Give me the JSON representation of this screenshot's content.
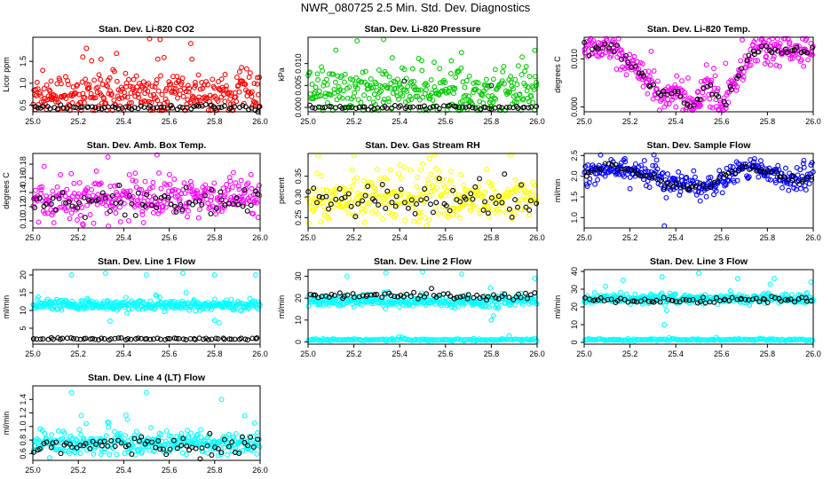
{
  "page": {
    "title": "NWR_080725  2.5 Min. Std. Dev. Diagnostics"
  },
  "chart_data": [
    {
      "type": "scatter",
      "title": "Stan. Dev. Li-820 CO2",
      "ylabel": "Licor ppm",
      "xlim": [
        25.0,
        26.0
      ],
      "xticks": [
        "25.0",
        "25.2",
        "25.4",
        "25.6",
        "25.8",
        "26.0"
      ],
      "ylim": [
        0.35,
        2.05
      ],
      "yticks": [
        "0.5",
        "1.0",
        "1.5"
      ],
      "series": [
        {
          "name": "color",
          "color": "#ff0000",
          "base": 0.75,
          "spread": 0.22,
          "outliers": [
            [
              25.22,
              1.6
            ],
            [
              25.56,
              2.0
            ],
            [
              25.55,
              1.55
            ],
            [
              25.3,
              1.55
            ],
            [
              25.7,
              1.55
            ],
            [
              25.08,
              1.05
            ]
          ]
        },
        {
          "name": "black",
          "color": "#000000",
          "base": 0.45,
          "spread": 0.03,
          "outliers": [
            [
              25.99,
              0.35
            ]
          ]
        }
      ]
    },
    {
      "type": "scatter",
      "title": "Stan. Dev. Li-820 Pressure",
      "ylabel": "kPa",
      "xlim": [
        25.0,
        26.0
      ],
      "xticks": [
        "25.0",
        "25.2",
        "25.4",
        "25.6",
        "25.8",
        "26.0"
      ],
      "ylim": [
        -0.001,
        0.016
      ],
      "yticks": [
        "0.000",
        "0.005",
        "0.010"
      ],
      "series": [
        {
          "name": "color",
          "color": "#00cc00",
          "base": 0.0035,
          "spread": 0.0028,
          "outliers": [
            [
              25.33,
              0.0155
            ],
            [
              25.67,
              0.0125
            ],
            [
              25.99,
              0.013
            ]
          ]
        },
        {
          "name": "black",
          "color": "#000000",
          "base": 0.0,
          "spread": 0.0002,
          "outliers": [
            [
              25.42,
              0.006
            ],
            [
              25.8,
              0.005
            ]
          ]
        }
      ]
    },
    {
      "type": "scatter",
      "title": "Stan. Dev. Li-820 Temp.",
      "ylabel": "degrees C",
      "xlim": [
        25.0,
        26.0
      ],
      "xticks": [
        "25.0",
        "25.2",
        "25.4",
        "25.6",
        "25.8",
        "26.0"
      ],
      "ylim": [
        -0.001,
        0.0145
      ],
      "yticks": [
        "0.000",
        "0.010"
      ],
      "series": [
        {
          "name": "color",
          "color": "#ff00ff",
          "base": "temp",
          "spread": 0.0015,
          "outliers": [
            [
              25.35,
              0.0
            ],
            [
              25.4,
              0.0
            ],
            [
              25.5,
              0.0
            ],
            [
              25.55,
              0.0
            ]
          ]
        },
        {
          "name": "black",
          "color": "#000000",
          "base": "temp",
          "spread": 0.0006,
          "outliers": []
        }
      ]
    },
    {
      "type": "scatter",
      "title": "Stan. Dev. Amb. Box Temp.",
      "ylabel": "degrees C",
      "xlim": [
        25.0,
        26.0
      ],
      "xticks": [
        "25.0",
        "25.2",
        "25.4",
        "25.6",
        "25.8",
        "26.0"
      ],
      "ylim": [
        0.09,
        0.195
      ],
      "yticks": [
        "0.10",
        "0.12",
        "0.14",
        "0.16",
        "0.18"
      ],
      "series": [
        {
          "name": "color",
          "color": "#ff00ff",
          "base": 0.13,
          "spread": 0.014,
          "outliers": [
            [
              25.33,
              0.19
            ],
            [
              25.28,
              0.17
            ]
          ]
        },
        {
          "name": "black",
          "color": "#000000",
          "base": 0.127,
          "spread": 0.01,
          "outliers": []
        }
      ]
    },
    {
      "type": "scatter",
      "title": "Stan. Dev. Gas Stream RH",
      "ylabel": "percent",
      "xlim": [
        25.0,
        26.0
      ],
      "xticks": [
        "25.0",
        "25.2",
        "25.4",
        "25.6",
        "25.8",
        "26.0"
      ],
      "ylim": [
        0.225,
        0.405
      ],
      "yticks": [
        "0.25",
        "0.30",
        "0.35"
      ],
      "series": [
        {
          "name": "color",
          "color": "#ffff00",
          "base": 0.295,
          "spread": 0.028,
          "outliers": [
            [
              25.2,
              0.4
            ],
            [
              25.5,
              0.38
            ]
          ]
        },
        {
          "name": "black",
          "color": "#000000",
          "base": 0.29,
          "spread": 0.022,
          "outliers": []
        }
      ]
    },
    {
      "type": "scatter",
      "title": "Stan. Dev. Sample Flow",
      "ylabel": "ml/min",
      "xlim": [
        25.0,
        26.0
      ],
      "xticks": [
        "25.0",
        "25.2",
        "25.4",
        "25.6",
        "25.8",
        "26.0"
      ],
      "ylim": [
        0.75,
        2.55
      ],
      "yticks": [
        "1.0",
        "1.5",
        "2.0",
        "2.5"
      ],
      "series": [
        {
          "name": "color",
          "color": "#0000ff",
          "base": "flow",
          "spread": 0.13,
          "outliers": [
            [
              25.35,
              0.8
            ],
            [
              25.2,
              1.7
            ]
          ]
        },
        {
          "name": "black",
          "color": "#000000",
          "base": "flow",
          "spread": 0.05,
          "outliers": []
        }
      ]
    },
    {
      "type": "scatter",
      "title": "Stan. Dev. Line 1 Flow",
      "ylabel": "ml/min",
      "xlim": [
        25.0,
        26.0
      ],
      "xticks": [
        "25.0",
        "25.2",
        "25.4",
        "25.6",
        "25.8",
        "26.0"
      ],
      "ylim": [
        0.5,
        21.5
      ],
      "yticks": [
        "5",
        "10",
        "15",
        "20"
      ],
      "series": [
        {
          "name": "color",
          "color": "#00ffff",
          "base": 11.5,
          "spread": 0.7,
          "outliers": [
            [
              25.17,
              20
            ],
            [
              25.32,
              20.5
            ],
            [
              25.5,
              20
            ],
            [
              25.66,
              20.5
            ],
            [
              25.8,
              20
            ],
            [
              25.98,
              20
            ],
            [
              25.34,
              7
            ],
            [
              25.82,
              6.5
            ],
            [
              25.8,
              7.2
            ]
          ]
        },
        {
          "name": "black",
          "color": "#000000",
          "base": 2.0,
          "spread": 0.15,
          "outliers": []
        }
      ]
    },
    {
      "type": "scatter",
      "title": "Stan. Dev. Line 2 Flow",
      "ylabel": "ml/min",
      "xlim": [
        25.0,
        26.0
      ],
      "xticks": [
        "25.0",
        "25.2",
        "25.4",
        "25.6",
        "25.8",
        "26.0"
      ],
      "ylim": [
        -1,
        33
      ],
      "yticks": [
        "0",
        "10",
        "20",
        "30"
      ],
      "series": [
        {
          "name": "color",
          "color": "#00ffff",
          "base": 18.5,
          "spread": 1.2,
          "outliers": [
            [
              25.17,
              30
            ],
            [
              25.34,
              31.5
            ],
            [
              25.5,
              32
            ],
            [
              25.67,
              31
            ],
            [
              25.99,
              29
            ],
            [
              25.81,
              12
            ],
            [
              25.8,
              10
            ]
          ]
        },
        {
          "name": "cyan-floor",
          "color": "#00ffff",
          "base": 1.0,
          "spread": 0.2,
          "outliers": []
        },
        {
          "name": "black",
          "color": "#000000",
          "base": 21.0,
          "spread": 0.8,
          "outliers": []
        }
      ]
    },
    {
      "type": "scatter",
      "title": "Stan. Dev. Line 3 Flow",
      "ylabel": "ml/min",
      "xlim": [
        25.0,
        26.0
      ],
      "xticks": [
        "25.0",
        "25.2",
        "25.4",
        "25.6",
        "25.8",
        "26.0"
      ],
      "ylim": [
        -1,
        41
      ],
      "yticks": [
        "0",
        "10",
        "20",
        "30",
        "40"
      ],
      "series": [
        {
          "name": "color",
          "color": "#00ffff",
          "base": 24.5,
          "spread": 1.4,
          "outliers": [
            [
              25.17,
              35
            ],
            [
              25.34,
              37
            ],
            [
              25.5,
              39
            ],
            [
              25.67,
              36
            ],
            [
              25.83,
              36
            ],
            [
              25.99,
              34
            ],
            [
              25.35,
              10
            ],
            [
              25.36,
              18
            ]
          ]
        },
        {
          "name": "cyan-floor",
          "color": "#00ffff",
          "base": 1.5,
          "spread": 0.25,
          "outliers": []
        },
        {
          "name": "black",
          "color": "#000000",
          "base": 24.0,
          "spread": 1.0,
          "outliers": []
        }
      ]
    },
    {
      "type": "scatter",
      "title": "Stan. Dev. Line 4 (LT) Flow",
      "ylabel": "ml/min",
      "xlim": [
        25.0,
        26.0
      ],
      "xticks": [
        "25.0",
        "25.2",
        "25.4",
        "25.6",
        "25.8",
        "26.0"
      ],
      "ylim": [
        0.5,
        1.6
      ],
      "yticks": [
        "0.6",
        "0.8",
        "1.0",
        "1.2",
        "1.4"
      ],
      "series": [
        {
          "name": "color",
          "color": "#00ffff",
          "base": 0.75,
          "spread": 0.08,
          "outliers": [
            [
              25.17,
              1.5
            ],
            [
              25.5,
              1.5
            ],
            [
              25.83,
              1.4
            ]
          ]
        },
        {
          "name": "black",
          "color": "#000000",
          "base": 0.72,
          "spread": 0.07,
          "outliers": []
        }
      ]
    }
  ]
}
